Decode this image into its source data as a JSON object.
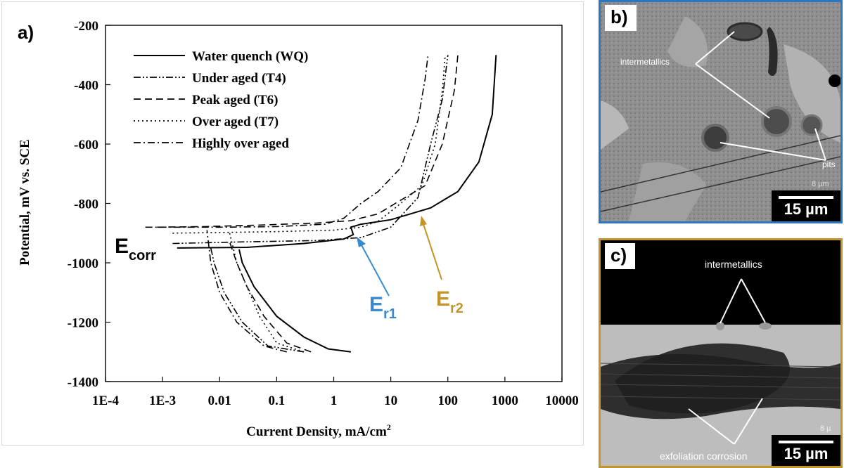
{
  "chart_data": {
    "type": "line",
    "panel_label": "a)",
    "xlabel": "Current Density, mA/cm",
    "xlabel_superscript": "2",
    "ylabel": "Potential, mV vs. SCE",
    "xscale": "log",
    "xlim": [
      0.0001,
      10000
    ],
    "ylim": [
      -1400,
      -200
    ],
    "x_ticks": [
      0.0001,
      0.001,
      0.01,
      0.1,
      1,
      10,
      100,
      1000,
      10000
    ],
    "x_tick_labels": [
      "1E-4",
      "1E-3",
      "0.01",
      "0.1",
      "1",
      "10",
      "100",
      "1000",
      "10000"
    ],
    "y_ticks": [
      -200,
      -400,
      -600,
      -800,
      -1000,
      -1200,
      -1400
    ],
    "y_tick_labels": [
      "-200",
      "-400",
      "-600",
      "-800",
      "-1000",
      "-1200",
      "-1400"
    ],
    "legend_position": "top-left",
    "series": [
      {
        "name": "Water quench (WQ)",
        "dash": "solid",
        "cathodic": [
          [
            2,
            -1300
          ],
          [
            0.8,
            -1290
          ],
          [
            0.3,
            -1250
          ],
          [
            0.1,
            -1180
          ],
          [
            0.04,
            -1080
          ],
          [
            0.025,
            -1000
          ],
          [
            0.022,
            -955
          ]
        ],
        "anodic": [
          [
            0.0018,
            -950
          ],
          [
            0.03,
            -948
          ],
          [
            0.3,
            -935
          ],
          [
            1.5,
            -920
          ],
          [
            2.2,
            -905
          ],
          [
            2,
            -880
          ],
          [
            3,
            -870
          ],
          [
            10,
            -855
          ],
          [
            50,
            -815
          ],
          [
            150,
            -760
          ],
          [
            350,
            -660
          ],
          [
            600,
            -500
          ],
          [
            700,
            -300
          ]
        ]
      },
      {
        "name": "Under aged (T4)",
        "dash": "dashdotdot",
        "cathodic": [
          [
            0.3,
            -1300
          ],
          [
            0.07,
            -1280
          ],
          [
            0.025,
            -1200
          ],
          [
            0.012,
            -1100
          ],
          [
            0.008,
            -1000
          ],
          [
            0.007,
            -950
          ]
        ],
        "anodic": [
          [
            0.0015,
            -935
          ],
          [
            0.02,
            -930
          ],
          [
            0.5,
            -925
          ],
          [
            3,
            -915
          ],
          [
            10,
            -880
          ],
          [
            30,
            -780
          ],
          [
            50,
            -600
          ],
          [
            80,
            -450
          ],
          [
            100,
            -300
          ]
        ]
      },
      {
        "name": "Peak aged (T6)",
        "dash": "dash",
        "cathodic": [
          [
            0.4,
            -1300
          ],
          [
            0.15,
            -1270
          ],
          [
            0.06,
            -1180
          ],
          [
            0.03,
            -1080
          ],
          [
            0.02,
            -1000
          ],
          [
            0.015,
            -930
          ]
        ],
        "anodic": [
          [
            0.0008,
            -880
          ],
          [
            0.005,
            -878
          ],
          [
            0.05,
            -873
          ],
          [
            0.5,
            -866
          ],
          [
            2,
            -858
          ],
          [
            6,
            -835
          ],
          [
            12,
            -800
          ],
          [
            40,
            -740
          ],
          [
            80,
            -600
          ],
          [
            130,
            -420
          ],
          [
            150,
            -300
          ]
        ]
      },
      {
        "name": "Over aged (T7)",
        "dash": "dot",
        "cathodic": [
          [
            0.3,
            -1300
          ],
          [
            0.1,
            -1270
          ],
          [
            0.05,
            -1180
          ],
          [
            0.03,
            -1080
          ],
          [
            0.02,
            -1000
          ],
          [
            0.015,
            -900
          ]
        ],
        "anodic": [
          [
            0.0015,
            -900
          ],
          [
            0.01,
            -898
          ],
          [
            0.1,
            -895
          ],
          [
            1,
            -890
          ],
          [
            3,
            -880
          ],
          [
            6,
            -860
          ],
          [
            12,
            -815
          ],
          [
            35,
            -740
          ],
          [
            60,
            -600
          ],
          [
            80,
            -420
          ],
          [
            90,
            -300
          ]
        ]
      },
      {
        "name": "Highly over aged",
        "dash": "dashdot",
        "cathodic": [
          [
            0.15,
            -1300
          ],
          [
            0.06,
            -1280
          ],
          [
            0.02,
            -1200
          ],
          [
            0.01,
            -1100
          ],
          [
            0.007,
            -1000
          ],
          [
            0.006,
            -890
          ]
        ],
        "anodic": [
          [
            0.0005,
            -880
          ],
          [
            0.01,
            -880
          ],
          [
            0.1,
            -878
          ],
          [
            0.7,
            -870
          ],
          [
            1.5,
            -850
          ],
          [
            3,
            -800
          ],
          [
            6,
            -760
          ],
          [
            15,
            -680
          ],
          [
            30,
            -520
          ],
          [
            40,
            -380
          ],
          [
            45,
            -300
          ]
        ]
      }
    ],
    "annotations": [
      {
        "text": "E",
        "sub": "corr",
        "color": "#000000"
      },
      {
        "text": "E",
        "sub": "r1",
        "color": "#3a8ad0"
      },
      {
        "text": "E",
        "sub": "r2",
        "color": "#c4962a"
      }
    ]
  },
  "panels": {
    "b": {
      "label": "b)",
      "scalebar": "15 µm",
      "callouts": [
        "intermetallics",
        "pits",
        "8 µm"
      ],
      "border_color": "#2a78c2"
    },
    "c": {
      "label": "c)",
      "scalebar": "15 µm",
      "callouts": [
        "intermetallics",
        "exfoliation corrosion",
        "8 µ"
      ],
      "border_color": "#c4962a"
    }
  }
}
